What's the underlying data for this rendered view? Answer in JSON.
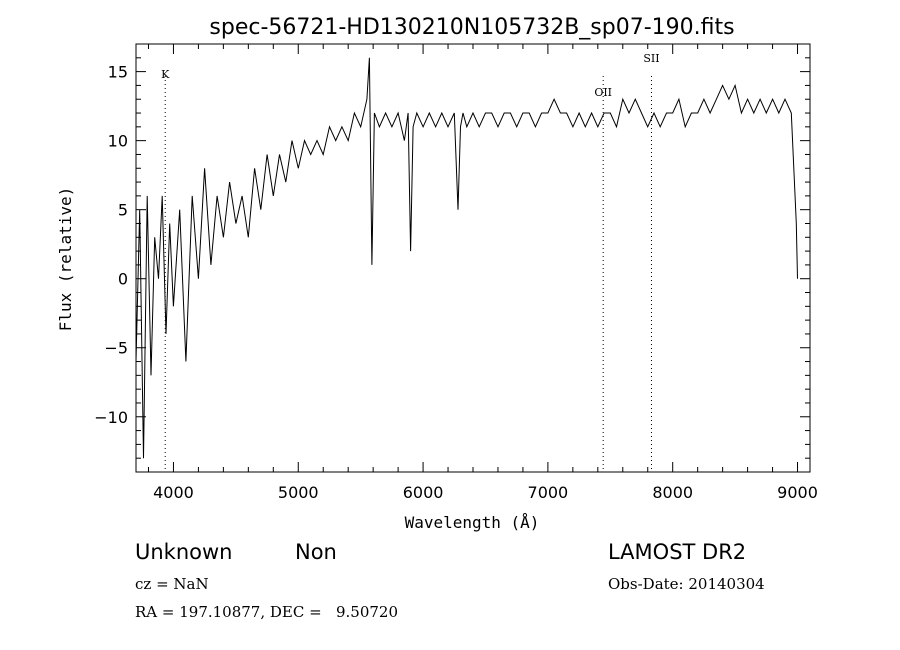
{
  "chart_data": {
    "type": "line",
    "title": "spec-56721-HD130210N105732B_sp07-190.fits",
    "xlabel": "Wavelength (Å)",
    "ylabel": "Flux (relative)",
    "xlim": [
      3700,
      9100
    ],
    "ylim": [
      -14,
      17
    ],
    "x_ticks": [
      4000,
      5000,
      6000,
      7000,
      8000,
      9000
    ],
    "y_ticks": [
      -10,
      -5,
      0,
      5,
      10,
      15
    ],
    "grid": false,
    "line_markers": [
      {
        "label": "K",
        "x": 3934
      },
      {
        "label": "OII",
        "x": 7443
      },
      {
        "label": "SII",
        "x": 7830
      }
    ],
    "series": [
      {
        "x": [
          3700,
          3730,
          3760,
          3790,
          3820,
          3850,
          3880,
          3910,
          3940,
          3970,
          4000,
          4050,
          4100,
          4150,
          4200,
          4250,
          4300,
          4350,
          4400,
          4450,
          4500,
          4550,
          4600,
          4650,
          4700,
          4750,
          4800,
          4850,
          4900,
          4950,
          5000,
          5050,
          5100,
          5150,
          5200,
          5250,
          5300,
          5350,
          5400,
          5450,
          5500,
          5550,
          5570,
          5590,
          5610,
          5650,
          5700,
          5750,
          5800,
          5850,
          5880,
          5900,
          5920,
          5950,
          6000,
          6050,
          6100,
          6150,
          6200,
          6250,
          6280,
          6300,
          6320,
          6350,
          6400,
          6450,
          6500,
          6550,
          6600,
          6650,
          6700,
          6750,
          6800,
          6850,
          6900,
          6950,
          7000,
          7050,
          7100,
          7150,
          7200,
          7250,
          7300,
          7350,
          7400,
          7450,
          7500,
          7550,
          7600,
          7650,
          7700,
          7750,
          7800,
          7850,
          7900,
          7950,
          8000,
          8050,
          8100,
          8150,
          8200,
          8250,
          8300,
          8350,
          8400,
          8450,
          8500,
          8550,
          8600,
          8650,
          8700,
          8750,
          8800,
          8850,
          8900,
          8950,
          8990,
          9000
        ],
        "y": [
          -6,
          5,
          -13,
          6,
          -7,
          3,
          0,
          6,
          -4,
          4,
          -2,
          5,
          -6,
          6,
          0,
          8,
          1,
          6,
          3,
          7,
          4,
          6,
          3,
          8,
          5,
          9,
          6,
          9,
          7,
          10,
          8,
          10,
          9,
          10,
          9,
          11,
          10,
          11,
          10,
          12,
          11,
          13,
          16,
          1,
          12,
          11,
          12,
          11,
          12,
          10,
          12,
          2,
          11,
          12,
          11,
          12,
          11,
          12,
          11,
          12,
          5,
          11,
          12,
          11,
          12,
          11,
          12,
          12,
          11,
          12,
          12,
          11,
          12,
          12,
          11,
          12,
          12,
          13,
          12,
          12,
          11,
          12,
          11,
          12,
          11,
          12,
          12,
          11,
          13,
          12,
          13,
          12,
          11,
          12,
          11,
          12,
          12,
          13,
          11,
          12,
          12,
          13,
          12,
          13,
          14,
          13,
          14,
          12,
          13,
          12,
          13,
          12,
          13,
          12,
          13,
          12,
          4,
          0
        ]
      }
    ]
  },
  "footer": {
    "class_text": "Unknown",
    "subclass_text": "Non",
    "survey_text": "LAMOST DR2",
    "cz_text": "cz = NaN",
    "obs_date_text": "Obs-Date: 20140304",
    "coords_text": "RA = 197.10877, DEC =   9.50720"
  }
}
